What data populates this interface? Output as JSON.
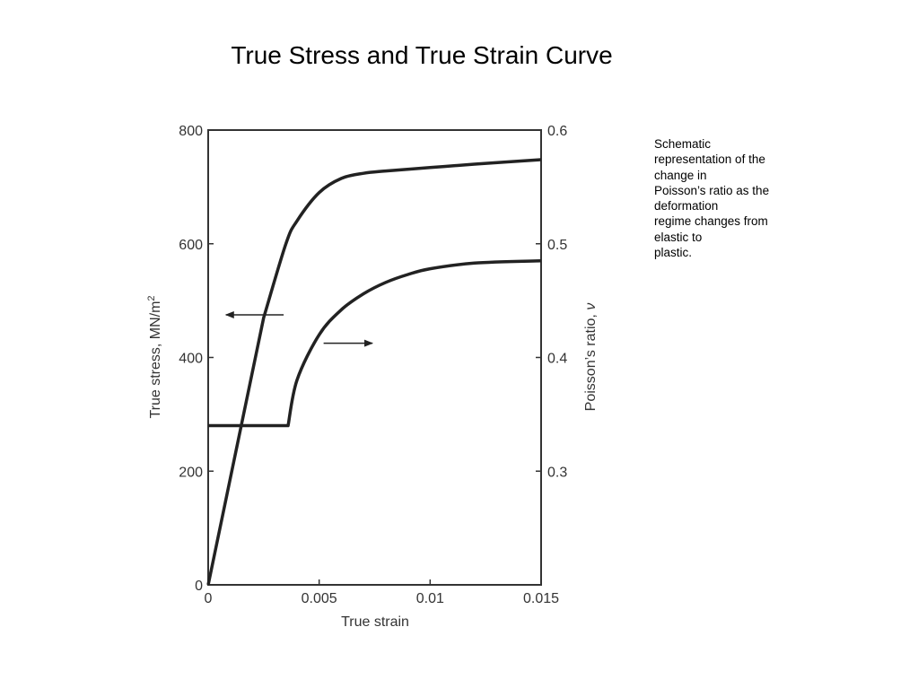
{
  "slide": {
    "title": "True Stress and True Strain Curve",
    "note_lines": [
      "Schematic",
      "representation of the",
      "change in",
      "Poisson’s ratio as the",
      "deformation",
      "regime changes from",
      "elastic to",
      "plastic."
    ]
  },
  "chart_data": {
    "type": "line",
    "title": "",
    "xlabel": "True strain",
    "ylabel_left": "True stress, MN/m",
    "ylabel_left_sup": "2",
    "ylabel_right": "Poisson’s ratio, ",
    "ylabel_right_symbol": "ν",
    "xlim": [
      0,
      0.015
    ],
    "ylim_left": [
      0,
      800
    ],
    "ylim_right": [
      0.2,
      0.6
    ],
    "x_ticks": [
      {
        "value": 0,
        "label": "0"
      },
      {
        "value": 0.005,
        "label": "0.005"
      },
      {
        "value": 0.01,
        "label": "0.01"
      },
      {
        "value": 0.015,
        "label": "0.015"
      }
    ],
    "y_left_ticks": [
      {
        "value": 0,
        "label": "0"
      },
      {
        "value": 200,
        "label": "200"
      },
      {
        "value": 400,
        "label": "400"
      },
      {
        "value": 600,
        "label": "600"
      },
      {
        "value": 800,
        "label": "800"
      }
    ],
    "y_right_ticks": [
      {
        "value": 0.3,
        "label": "0.3"
      },
      {
        "value": 0.4,
        "label": "0.4"
      },
      {
        "value": 0.5,
        "label": "0.5"
      },
      {
        "value": 0.6,
        "label": "0.6"
      }
    ],
    "grid": false,
    "line_color": "#222222",
    "series": [
      {
        "axis": "left",
        "points": [
          [
            0,
            0
          ],
          [
            0.0025,
            470
          ],
          [
            0.0035,
            600
          ],
          [
            0.004,
            640
          ],
          [
            0.005,
            690
          ],
          [
            0.006,
            715
          ],
          [
            0.007,
            724
          ],
          [
            0.008,
            728
          ],
          [
            0.01,
            734
          ],
          [
            0.012,
            740
          ],
          [
            0.015,
            748
          ]
        ]
      },
      {
        "axis": "right",
        "points": [
          [
            0,
            0.34
          ],
          [
            0.0036,
            0.34
          ],
          [
            0.004,
            0.38
          ],
          [
            0.005,
            0.42
          ],
          [
            0.006,
            0.442
          ],
          [
            0.007,
            0.456
          ],
          [
            0.008,
            0.466
          ],
          [
            0.009,
            0.473
          ],
          [
            0.01,
            0.478
          ],
          [
            0.012,
            0.483
          ],
          [
            0.015,
            0.485
          ]
        ]
      }
    ],
    "annotations": [
      {
        "type": "arrow",
        "from": [
          0.0034,
          475
        ],
        "to": [
          0.0008,
          475
        ],
        "direction": "left"
      },
      {
        "type": "arrow",
        "from": [
          0.0052,
          425
        ],
        "to": [
          0.0074,
          425
        ],
        "direction": "right"
      }
    ]
  }
}
